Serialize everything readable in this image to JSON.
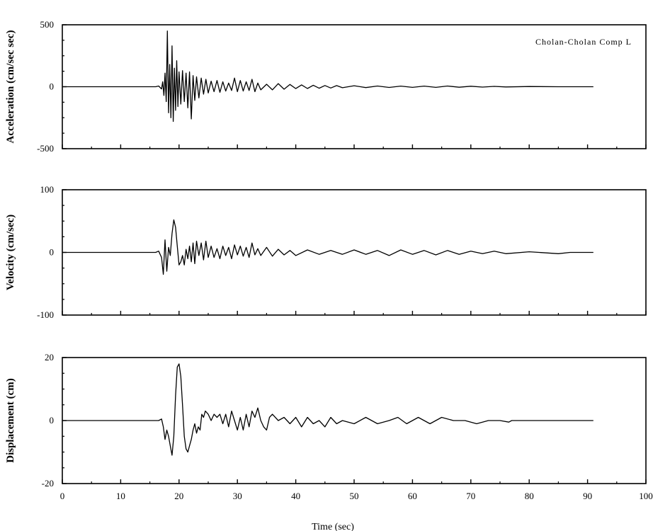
{
  "chart_data": [
    {
      "type": "line",
      "title": "",
      "xlabel": "",
      "ylabel": "Acceleration (cm/sec sec)",
      "xlim": [
        0,
        100
      ],
      "ylim": [
        -500,
        500
      ],
      "x_ticks": [
        "",
        "",
        "",
        "",
        "",
        "",
        "",
        "",
        "",
        "",
        ""
      ],
      "y_ticks": [
        {
          "value": -500,
          "label": "-500"
        },
        {
          "value": 0,
          "label": "0"
        },
        {
          "value": 500,
          "label": "500"
        }
      ],
      "annotation": "Cholan-Cholan Comp L",
      "grid": false,
      "series": [
        {
          "x": [
            0,
            16.0,
            16.5,
            17.0,
            17.2,
            17.4,
            17.6,
            17.8,
            18.0,
            18.2,
            18.4,
            18.6,
            18.8,
            19.0,
            19.2,
            19.4,
            19.6,
            19.8,
            20.0,
            20.3,
            20.6,
            20.9,
            21.2,
            21.5,
            21.8,
            22.1,
            22.4,
            22.7,
            23.0,
            23.4,
            23.8,
            24.2,
            24.6,
            25.0,
            25.5,
            26.0,
            26.5,
            27.0,
            27.5,
            28.0,
            28.5,
            29.0,
            29.5,
            30.0,
            30.5,
            31.0,
            31.5,
            32.0,
            32.5,
            33.0,
            33.5,
            34.0,
            35.0,
            36.0,
            37.0,
            38.0,
            39.0,
            40.0,
            41.0,
            42.0,
            43.0,
            44.0,
            45.0,
            46.0,
            47.0,
            48.0,
            50.0,
            52.0,
            54.0,
            56.0,
            58.0,
            60.0,
            62.0,
            64.0,
            66.0,
            68.0,
            70.0,
            72.0,
            74.0,
            76.0,
            80.0,
            85.0,
            91.0
          ],
          "y": [
            0,
            0,
            6,
            -18,
            40,
            -70,
            110,
            -120,
            450,
            -210,
            180,
            -250,
            330,
            -280,
            150,
            -190,
            210,
            -160,
            120,
            -140,
            130,
            -120,
            110,
            -170,
            120,
            -260,
            90,
            -110,
            80,
            -90,
            70,
            -60,
            60,
            -50,
            45,
            -40,
            50,
            -45,
            40,
            -35,
            30,
            -30,
            70,
            -40,
            50,
            -35,
            40,
            -30,
            60,
            -40,
            30,
            -25,
            20,
            -25,
            25,
            -20,
            18,
            -15,
            15,
            -14,
            12,
            -12,
            10,
            -10,
            9,
            -8,
            8,
            -7,
            6,
            -6,
            5,
            -5,
            5,
            -5,
            6,
            -4,
            4,
            -3,
            3,
            -2,
            2,
            0,
            0
          ]
        }
      ]
    },
    {
      "type": "line",
      "title": "",
      "xlabel": "",
      "ylabel": "Velocity (cm/sec)",
      "xlim": [
        0,
        100
      ],
      "ylim": [
        -100,
        100
      ],
      "x_ticks": [
        "",
        "",
        "",
        "",
        "",
        "",
        "",
        "",
        "",
        "",
        ""
      ],
      "y_ticks": [
        {
          "value": -100,
          "label": "-100"
        },
        {
          "value": 0,
          "label": "0"
        },
        {
          "value": 100,
          "label": "100"
        }
      ],
      "grid": false,
      "series": [
        {
          "x": [
            0,
            16.0,
            16.5,
            17.0,
            17.3,
            17.6,
            17.9,
            18.2,
            18.5,
            18.8,
            19.1,
            19.4,
            19.7,
            20.0,
            20.3,
            20.6,
            20.9,
            21.2,
            21.5,
            21.8,
            22.1,
            22.4,
            22.7,
            23.0,
            23.4,
            23.8,
            24.2,
            24.6,
            25.0,
            25.5,
            26.0,
            26.5,
            27.0,
            27.5,
            28.0,
            28.5,
            29.0,
            29.5,
            30.0,
            30.5,
            31.0,
            31.5,
            32.0,
            32.5,
            33.0,
            33.5,
            34.0,
            35.0,
            36.0,
            37.0,
            38.0,
            39.0,
            40.0,
            42.0,
            44.0,
            46.0,
            48.0,
            50.0,
            52.0,
            54.0,
            56.0,
            58.0,
            60.0,
            62.0,
            64.0,
            66.0,
            68.0,
            70.0,
            72.0,
            74.0,
            76.0,
            80.0,
            85.0,
            87.0,
            91.0
          ],
          "y": [
            0,
            0,
            2,
            -8,
            -35,
            20,
            -30,
            8,
            -5,
            30,
            52,
            40,
            10,
            -20,
            -15,
            -5,
            -20,
            5,
            -10,
            10,
            -15,
            15,
            -18,
            18,
            -5,
            15,
            -12,
            18,
            -8,
            10,
            -8,
            6,
            -10,
            10,
            -5,
            8,
            -10,
            12,
            -4,
            10,
            -6,
            8,
            -8,
            15,
            -4,
            6,
            -5,
            8,
            -6,
            5,
            -4,
            3,
            -5,
            4,
            -3,
            3,
            -3,
            4,
            -3,
            3,
            -5,
            4,
            -3,
            3,
            -4,
            3,
            -3,
            2,
            -2,
            2,
            -2,
            1,
            -2,
            0,
            0
          ]
        }
      ]
    },
    {
      "type": "line",
      "title": "",
      "xlabel": "Time (sec)",
      "ylabel": "Displacement (cm)",
      "xlim": [
        0,
        100
      ],
      "ylim": [
        -20,
        20
      ],
      "x_ticks": [
        "0",
        "10",
        "20",
        "30",
        "40",
        "50",
        "60",
        "70",
        "80",
        "90",
        "100"
      ],
      "y_ticks": [
        {
          "value": -20,
          "label": "-20"
        },
        {
          "value": 0,
          "label": "0"
        },
        {
          "value": 20,
          "label": "20"
        }
      ],
      "grid": false,
      "series": [
        {
          "x": [
            0,
            16.5,
            17.0,
            17.3,
            17.6,
            17.9,
            18.2,
            18.5,
            18.8,
            19.1,
            19.4,
            19.7,
            20.0,
            20.3,
            20.6,
            20.9,
            21.2,
            21.5,
            21.8,
            22.1,
            22.4,
            22.7,
            23.0,
            23.3,
            23.6,
            23.9,
            24.2,
            24.5,
            25.0,
            25.5,
            26.0,
            26.5,
            27.0,
            27.5,
            28.0,
            28.5,
            29.0,
            29.5,
            30.0,
            30.5,
            31.0,
            31.5,
            32.0,
            32.5,
            33.0,
            33.5,
            34.0,
            34.5,
            35.0,
            35.5,
            36.0,
            37.0,
            38.0,
            39.0,
            40.0,
            41.0,
            42.0,
            43.0,
            44.0,
            45.0,
            46.0,
            47.0,
            48.0,
            50.0,
            52.0,
            54.0,
            56.0,
            57.5,
            59.0,
            61.0,
            63.0,
            65.0,
            67.0,
            69.0,
            71.0,
            73.0,
            75.0,
            76.5,
            77.0,
            91.0
          ],
          "y": [
            0,
            0,
            0.5,
            -2,
            -6,
            -3,
            -5,
            -8,
            -11,
            -5,
            8,
            17,
            18,
            14,
            5,
            -5,
            -9,
            -10,
            -8,
            -6,
            -3,
            -1,
            -4,
            -2,
            -3,
            2,
            1,
            3,
            2,
            0,
            2,
            1,
            2,
            -1,
            2,
            -2,
            3,
            0,
            -3,
            1,
            -3,
            2,
            -2,
            3,
            1,
            4,
            0,
            -2,
            -3,
            1,
            2,
            0,
            1,
            -1,
            1,
            -2,
            1,
            -1,
            0,
            -2,
            1,
            -1,
            0,
            -1,
            1,
            -1,
            0,
            1,
            -1,
            1,
            -1,
            1,
            0,
            0,
            -1,
            0,
            0,
            -0.5,
            0,
            0
          ]
        }
      ]
    }
  ]
}
